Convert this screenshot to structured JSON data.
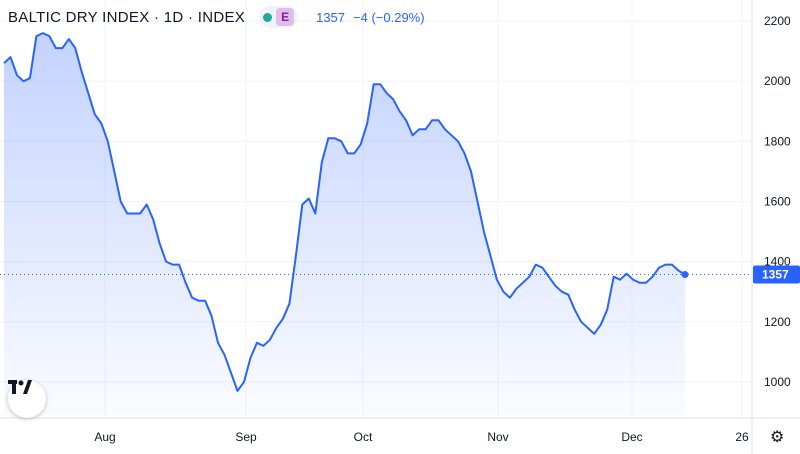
{
  "header": {
    "title": "BALTIC DRY INDEX · 1D · INDEX",
    "badge_e": "E",
    "last_price": "1357",
    "change": "−4 (−0.29%)"
  },
  "icons": {
    "logo": "tradingview-logo",
    "settings": "gear-icon",
    "status": "market-status-dot"
  },
  "colors": {
    "line": "#2962ff",
    "fill": "#2962ff",
    "last_label_bg": "#2962ff"
  },
  "last_label": "1357",
  "chart_data": {
    "type": "area",
    "title": "BALTIC DRY INDEX · 1D · INDEX",
    "xlabel": "",
    "ylabel": "",
    "ylim": [
      880,
      2270
    ],
    "x_ticks": [
      "Aug",
      "Sep",
      "Oct",
      "Nov",
      "Dec",
      "26"
    ],
    "y_ticks": [
      1000,
      1200,
      1400,
      1600,
      1800,
      2000,
      2200
    ],
    "grid": true,
    "last_value": 1357,
    "values": [
      2060,
      2080,
      2020,
      2000,
      2010,
      2150,
      2160,
      2150,
      2110,
      2110,
      2140,
      2110,
      2030,
      1960,
      1890,
      1860,
      1800,
      1700,
      1600,
      1560,
      1560,
      1560,
      1590,
      1540,
      1460,
      1400,
      1390,
      1390,
      1330,
      1280,
      1270,
      1270,
      1220,
      1130,
      1090,
      1030,
      970,
      1000,
      1080,
      1130,
      1120,
      1140,
      1180,
      1210,
      1260,
      1420,
      1590,
      1610,
      1560,
      1730,
      1810,
      1810,
      1800,
      1760,
      1760,
      1790,
      1860,
      1990,
      1990,
      1960,
      1940,
      1900,
      1870,
      1820,
      1840,
      1840,
      1870,
      1870,
      1840,
      1820,
      1800,
      1760,
      1700,
      1600,
      1500,
      1420,
      1340,
      1300,
      1280,
      1310,
      1330,
      1350,
      1390,
      1380,
      1350,
      1320,
      1300,
      1290,
      1240,
      1200,
      1180,
      1160,
      1190,
      1240,
      1350,
      1340,
      1360,
      1340,
      1330,
      1330,
      1350,
      1380,
      1390,
      1390,
      1370,
      1357
    ]
  }
}
